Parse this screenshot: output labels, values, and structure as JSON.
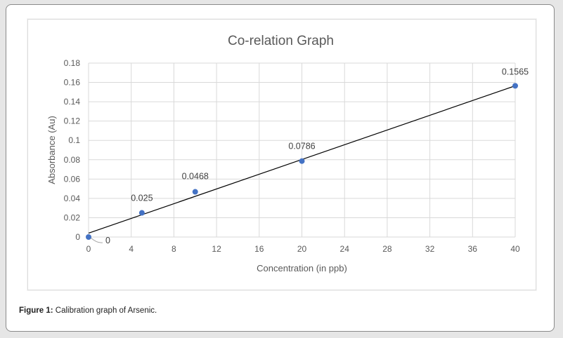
{
  "chart_data": {
    "type": "scatter",
    "title": "Co-relation Graph",
    "xlabel": "Concentration (in ppb)",
    "ylabel": "Absorbance (Au)",
    "xlim": [
      0,
      40
    ],
    "ylim": [
      0,
      0.18
    ],
    "x_ticks": [
      0,
      4,
      8,
      12,
      16,
      20,
      24,
      28,
      32,
      36,
      40
    ],
    "x_tick_labels": [
      "0",
      "4",
      "8",
      "12",
      "16",
      "20",
      "24",
      "28",
      "32",
      "36",
      "40"
    ],
    "y_ticks": [
      0,
      0.02,
      0.04,
      0.06,
      0.08,
      0.1,
      0.12,
      0.14,
      0.16,
      0.18
    ],
    "y_tick_labels": [
      "0",
      "0.02",
      "0.04",
      "0.06",
      "0.08",
      "0.1",
      "0.12",
      "0.14",
      "0.16",
      "0.18"
    ],
    "grid": true,
    "series": [
      {
        "x": [
          0,
          5,
          10,
          20,
          40
        ],
        "y": [
          0,
          0.025,
          0.0468,
          0.0786,
          0.1565
        ],
        "labels": [
          "0",
          "0.025",
          "0.0468",
          "0.0786",
          "0.1565"
        ],
        "color": "#4472c4"
      }
    ],
    "trendline": {
      "color": "#000000",
      "x": [
        0,
        40
      ],
      "y": [
        0.004,
        0.1565
      ]
    }
  },
  "caption": {
    "label": "Figure 1:",
    "text": " Calibration graph of Arsenic."
  }
}
